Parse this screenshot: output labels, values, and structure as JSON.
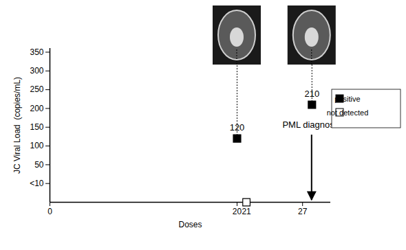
{
  "chart_data": {
    "type": "scatter",
    "x_label": "Doses",
    "y_label": "JC Viral Load  (copies/mL)",
    "series": [
      {
        "name": "positive",
        "color": "#000000",
        "marker": "square",
        "x": [
          20,
          28
        ],
        "values": [
          120,
          210
        ]
      },
      {
        "name": "not detected",
        "color": "#ffffff",
        "marker": "square",
        "x": [
          21
        ],
        "values": [
          null
        ]
      }
    ],
    "xlim": [
      0,
      30
    ],
    "xticks": [
      0,
      20,
      21,
      27
    ],
    "ylim": [
      -50,
      360
    ],
    "yticks": [
      {
        "value": 0,
        "label": "<10"
      },
      50,
      100,
      150,
      200,
      250,
      300,
      350
    ],
    "annotations": [
      {
        "text": "PML diagnosis",
        "x": 28
      }
    ],
    "data_labels": true,
    "legend": "right",
    "grid": false
  }
}
